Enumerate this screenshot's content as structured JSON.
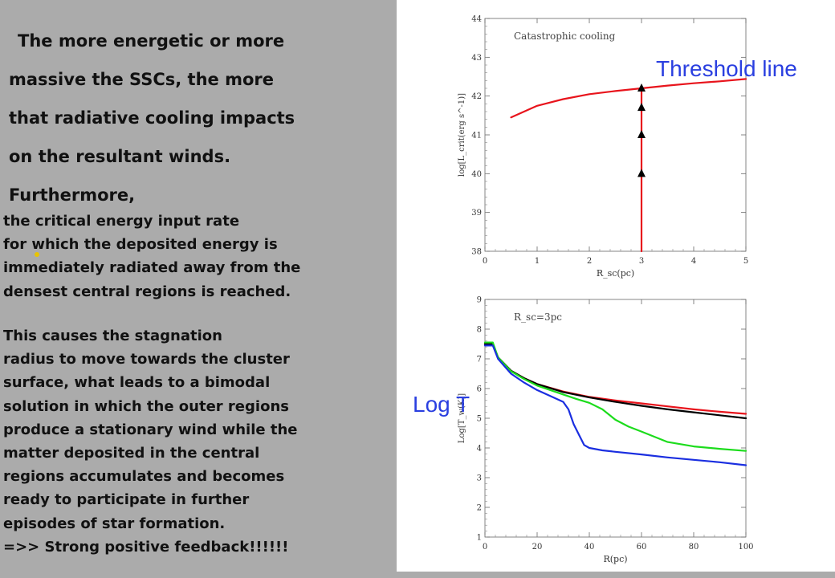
{
  "text": {
    "intro_lines": [
      "The more energetic or more",
      "massive the SSCs, the more",
      "that radiative cooling impacts",
      "on the resultant winds.",
      "Furthermore,"
    ],
    "para1": [
      "the critical energy input rate",
      "for which the deposited energy is",
      "immediately radiated away from the",
      "densest central regions is reached."
    ],
    "para2": [
      "This causes the stagnation",
      "radius to move towards the cluster",
      "surface, what leads to a bimodal",
      "solution in which the outer regions",
      "produce a stationary wind while the",
      "matter deposited in the central",
      "regions accumulates and becomes",
      "ready to participate in further",
      "episodes of star formation.",
      "=>> Strong positive feedback!!!!!!"
    ]
  },
  "overlays": {
    "threshold_label": "Threshold line",
    "logt_label": "Log T"
  },
  "chart_data": [
    {
      "type": "line",
      "title": "Catastrophic cooling",
      "xlabel": "R_sc(pc)",
      "ylabel": "log[L_crit(erg s^-1)]",
      "xlim": [
        0,
        5
      ],
      "ylim": [
        38,
        44
      ],
      "xticks": [
        "0",
        "1",
        "2",
        "3",
        "4",
        "5"
      ],
      "yticks": [
        "38",
        "39",
        "40",
        "41",
        "42",
        "43",
        "44"
      ],
      "series": [
        {
          "color": "#e8141c",
          "x": [
            0.5,
            1.0,
            1.5,
            2.0,
            2.5,
            3.0,
            3.5,
            4.0,
            4.5,
            5.0
          ],
          "y": [
            41.45,
            41.75,
            41.92,
            42.05,
            42.13,
            42.2,
            42.27,
            42.33,
            42.38,
            42.44
          ]
        },
        {
          "color": "#e8141c",
          "x": [
            3.0,
            3.0
          ],
          "y": [
            38.0,
            42.2
          ]
        }
      ],
      "markers": {
        "shape": "triangle-up",
        "color": "#000000",
        "x": [
          3.0,
          3.0,
          3.0,
          3.0
        ],
        "y": [
          40.0,
          41.0,
          41.7,
          42.2
        ]
      }
    },
    {
      "type": "line",
      "title": "R_sc=3pc",
      "xlabel": "R(pc)",
      "ylabel": "Log[T_w(K)]",
      "xlim": [
        0,
        100
      ],
      "ylim": [
        1,
        9
      ],
      "xticks": [
        "0",
        "20",
        "40",
        "60",
        "80",
        "100"
      ],
      "yticks": [
        "1",
        "2",
        "3",
        "4",
        "5",
        "6",
        "7",
        "8",
        "9"
      ],
      "series": [
        {
          "color": "#e8141c",
          "x": [
            0,
            3,
            5,
            10,
            15,
            20,
            30,
            40,
            50,
            60,
            70,
            80,
            90,
            100
          ],
          "y": [
            7.5,
            7.5,
            7.05,
            6.6,
            6.35,
            6.15,
            5.9,
            5.72,
            5.6,
            5.5,
            5.4,
            5.3,
            5.22,
            5.15
          ]
        },
        {
          "color": "#000000",
          "x": [
            0,
            3,
            5,
            10,
            15,
            20,
            30,
            40,
            50,
            60,
            70,
            80,
            90,
            100
          ],
          "y": [
            7.5,
            7.5,
            7.05,
            6.6,
            6.35,
            6.15,
            5.88,
            5.7,
            5.55,
            5.42,
            5.3,
            5.2,
            5.1,
            5.0
          ]
        },
        {
          "color": "#1cdc1c",
          "x": [
            0,
            3,
            5,
            10,
            15,
            20,
            30,
            35,
            40,
            45,
            50,
            55,
            60,
            70,
            80,
            90,
            100
          ],
          "y": [
            7.55,
            7.55,
            7.05,
            6.58,
            6.32,
            6.1,
            5.8,
            5.65,
            5.52,
            5.3,
            4.95,
            4.72,
            4.55,
            4.2,
            4.05,
            3.97,
            3.9
          ]
        },
        {
          "color": "#1a2ee0",
          "x": [
            0,
            3,
            5,
            10,
            15,
            20,
            25,
            30,
            32,
            34,
            36,
            38,
            40,
            45,
            50,
            60,
            70,
            80,
            90,
            100
          ],
          "y": [
            7.45,
            7.45,
            7.0,
            6.5,
            6.2,
            5.95,
            5.75,
            5.55,
            5.3,
            4.8,
            4.45,
            4.1,
            4.0,
            3.92,
            3.87,
            3.78,
            3.68,
            3.6,
            3.52,
            3.42
          ]
        }
      ]
    }
  ]
}
